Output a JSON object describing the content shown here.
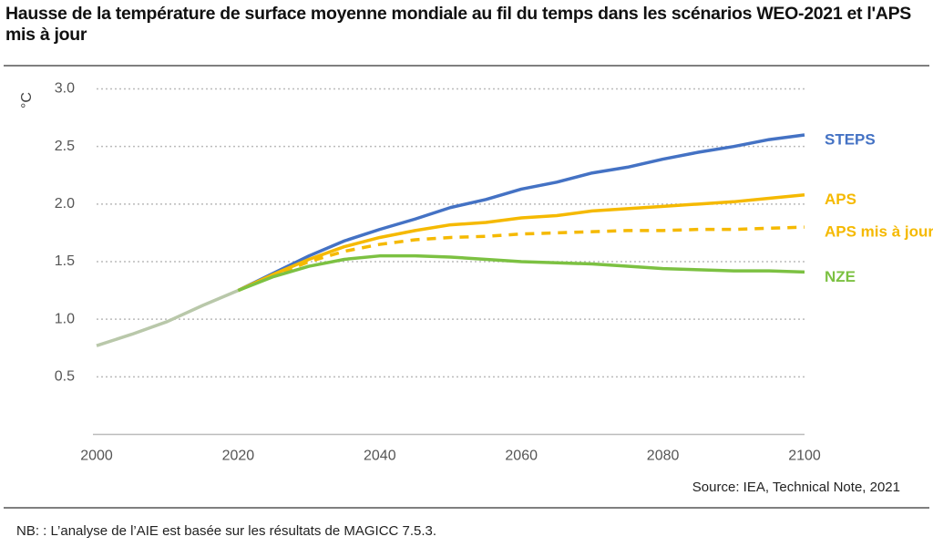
{
  "chart_data": {
    "type": "line",
    "title": "Hausse de la température de surface moyenne mondiale au fil du temps dans les scénarios WEO-2021 et l'APS mis à jour",
    "y_label": "°C",
    "source": "Source: IEA, Technical Note, 2021",
    "note": "NB: : L’analyse de l’AIE est basée sur les résultats de MAGICC 7.5.3.",
    "x": [
      2000,
      2005,
      2010,
      2015,
      2020,
      2025,
      2030,
      2035,
      2040,
      2045,
      2050,
      2055,
      2060,
      2065,
      2070,
      2075,
      2080,
      2085,
      2090,
      2095,
      2100
    ],
    "xlim": [
      2000,
      2100
    ],
    "xticks": [
      2000,
      2020,
      2040,
      2060,
      2080,
      2100
    ],
    "ylim": [
      0,
      3
    ],
    "yticks": [
      {
        "value": 0.5,
        "label": "0.5"
      },
      {
        "value": 1,
        "label": "1.0"
      },
      {
        "value": 1.5,
        "label": "1.5"
      },
      {
        "value": 2,
        "label": "2.0"
      },
      {
        "value": 2.5,
        "label": "2.5"
      },
      {
        "value": 3,
        "label": "3.0"
      }
    ],
    "grid": true,
    "series": [
      {
        "color": "#b9c8aa",
        "values": [
          0.77,
          0.87,
          0.98,
          1.12,
          1.25,
          null,
          null,
          null,
          null,
          null,
          null,
          null,
          null,
          null,
          null,
          null,
          null,
          null,
          null,
          null,
          null
        ]
      },
      {
        "name": "STEPS",
        "color": "#4472c4",
        "values": [
          null,
          null,
          null,
          null,
          1.25,
          1.4,
          1.55,
          1.68,
          1.78,
          1.87,
          1.97,
          2.04,
          2.13,
          2.19,
          2.27,
          2.32,
          2.39,
          2.45,
          2.5,
          2.56,
          2.6
        ]
      },
      {
        "name": "APS",
        "color": "#f5b900",
        "values": [
          null,
          null,
          null,
          null,
          1.25,
          1.39,
          1.52,
          1.63,
          1.71,
          1.77,
          1.82,
          1.84,
          1.88,
          1.9,
          1.94,
          1.96,
          1.98,
          2.0,
          2.02,
          2.05,
          2.08
        ]
      },
      {
        "name": "APS mis à jour",
        "color": "#f5b900",
        "dashed": true,
        "values": [
          null,
          null,
          null,
          null,
          1.25,
          1.38,
          1.5,
          1.59,
          1.65,
          1.69,
          1.71,
          1.72,
          1.74,
          1.75,
          1.76,
          1.77,
          1.77,
          1.78,
          1.78,
          1.79,
          1.8
        ]
      },
      {
        "name": "NZE",
        "color": "#7cc142",
        "values": [
          null,
          null,
          null,
          null,
          1.25,
          1.37,
          1.46,
          1.52,
          1.55,
          1.55,
          1.54,
          1.52,
          1.5,
          1.49,
          1.48,
          1.46,
          1.44,
          1.43,
          1.42,
          1.42,
          1.41
        ]
      }
    ]
  }
}
